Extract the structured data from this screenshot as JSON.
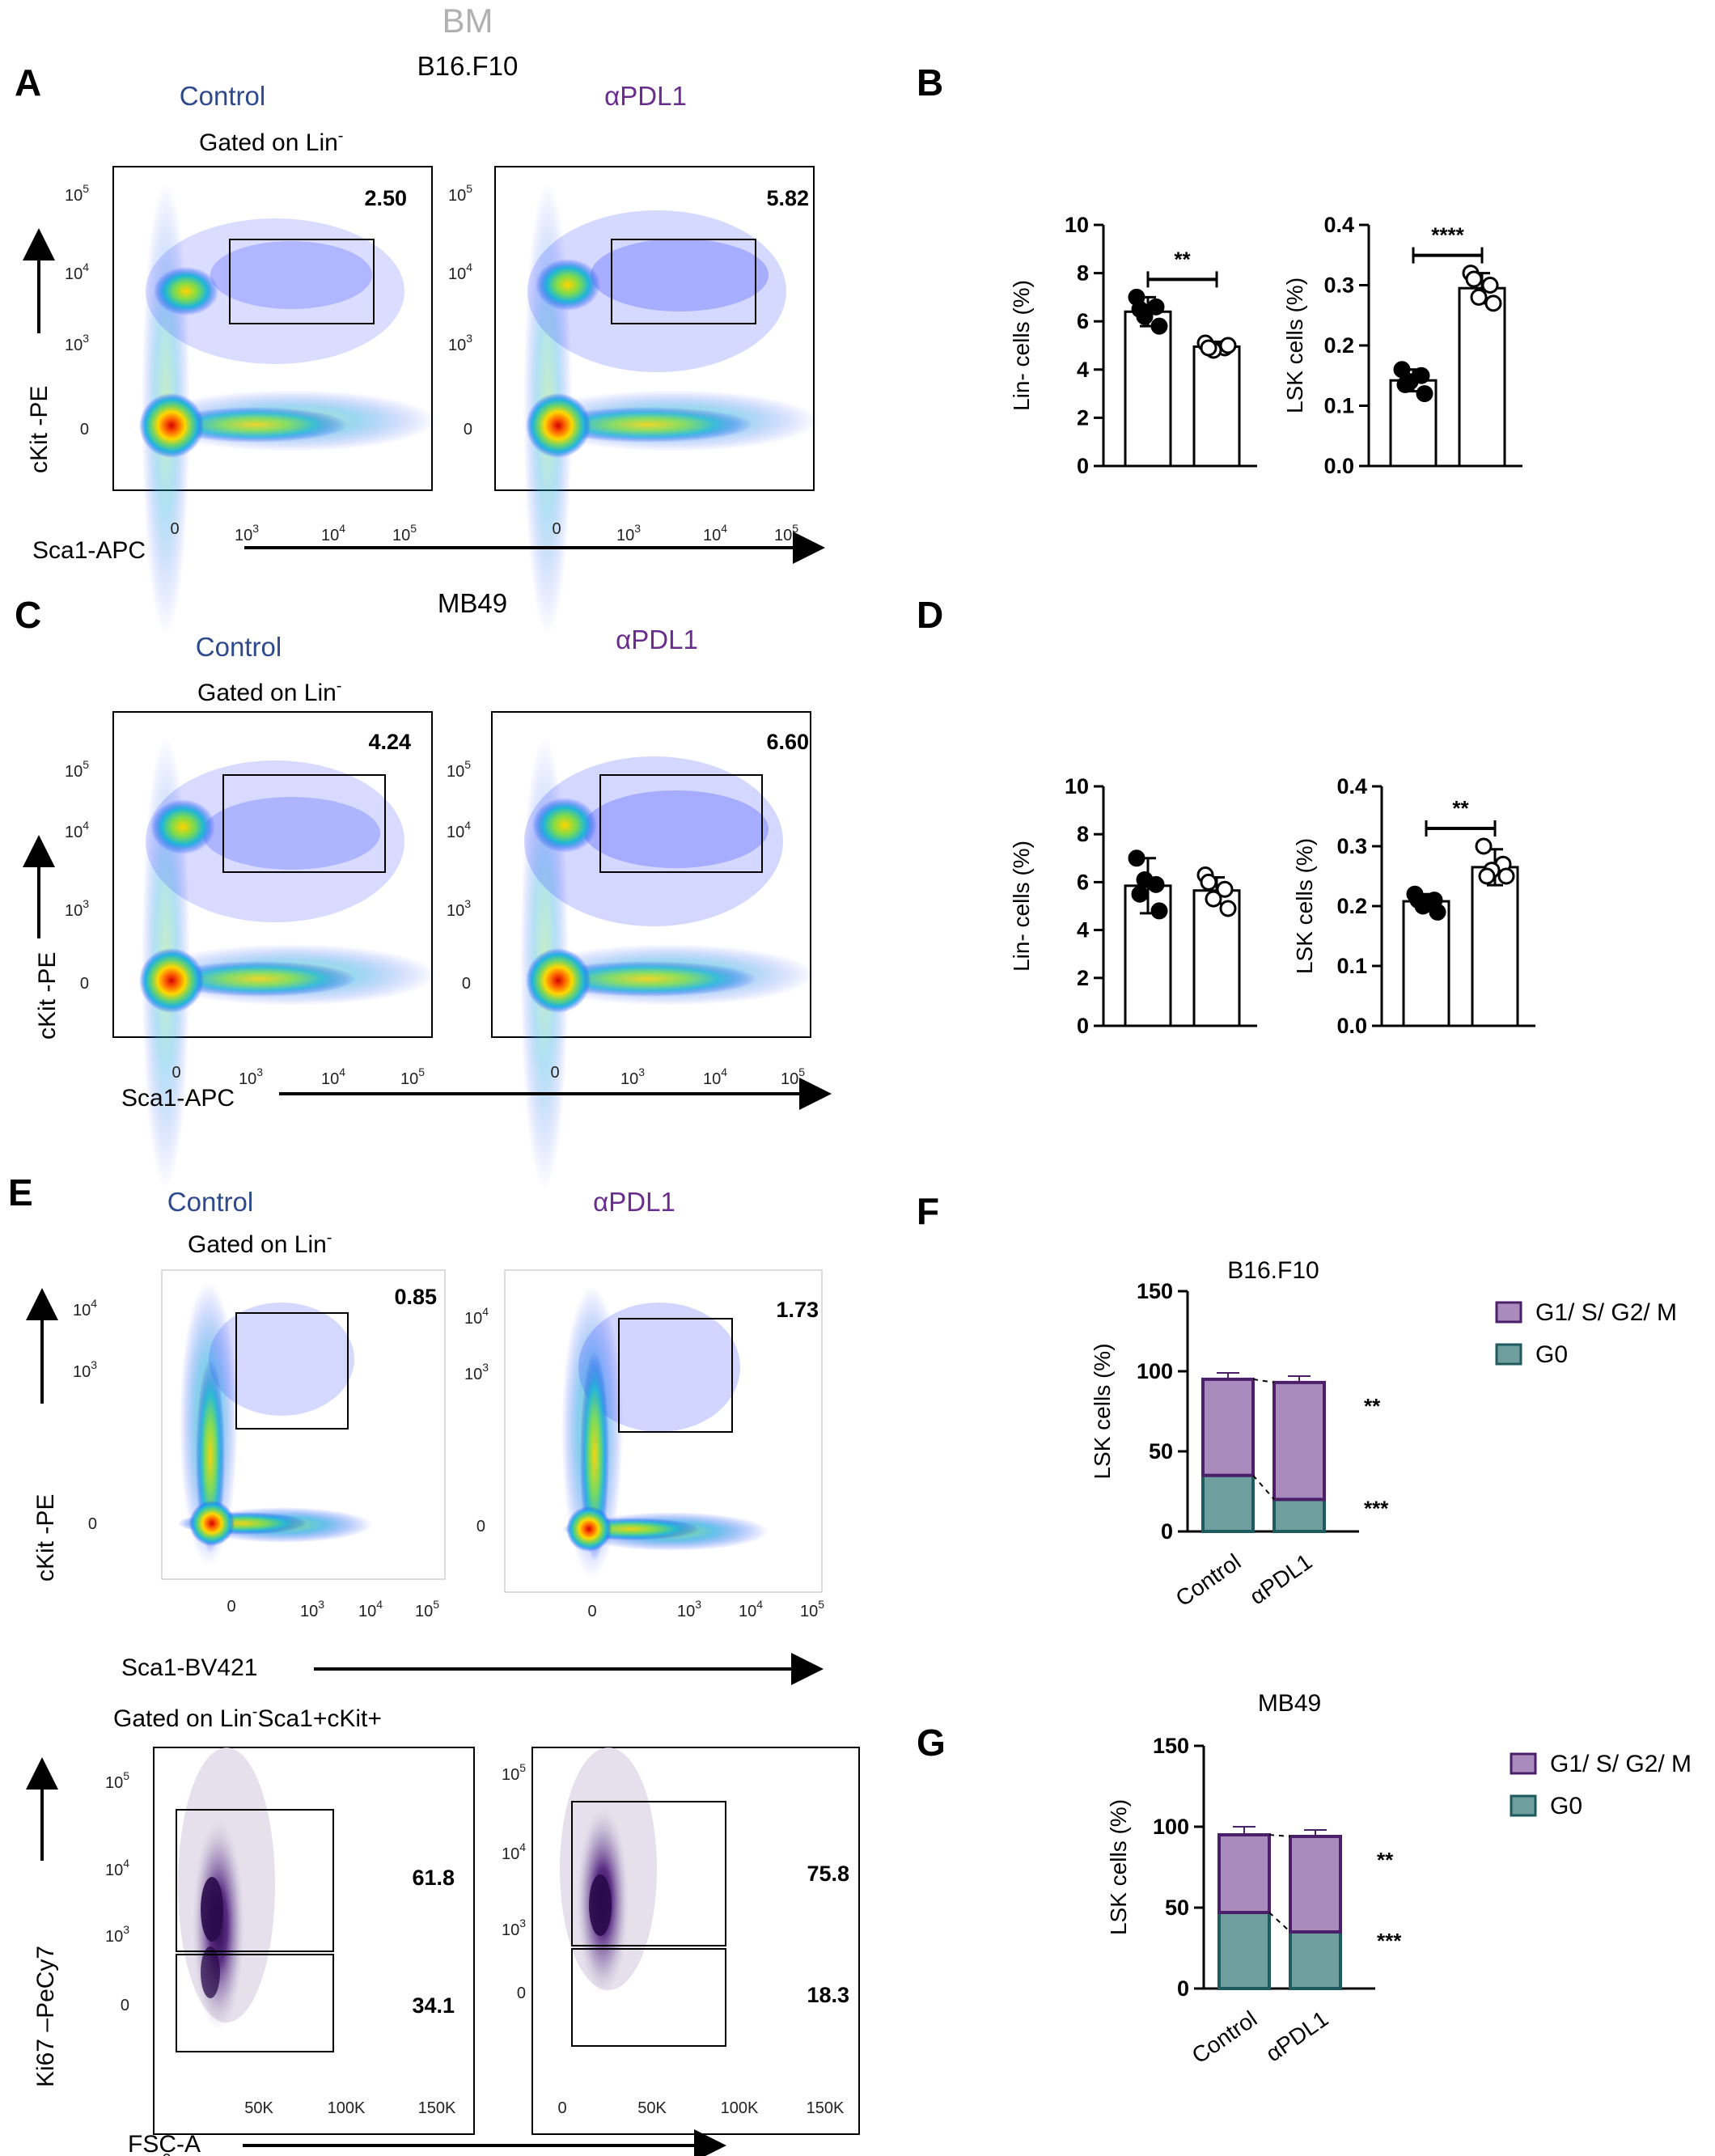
{
  "figure": {
    "tissue_label": "BM",
    "panels": {
      "A": {
        "letter": "A",
        "tumor": "B16.F10",
        "gate_text": "Gated on Lin",
        "gate_sup": "-",
        "x_axis": "Sca1-APC",
        "y_axis": "cKit -PE",
        "conditions": [
          {
            "name": "Control",
            "gate_pct": "2.50"
          },
          {
            "name": "αPDL1",
            "gate_pct": "5.82"
          }
        ],
        "y_ticks": [
          {
            "base": "10",
            "exp": "5"
          },
          {
            "base": "10",
            "exp": "4"
          },
          {
            "base": "10",
            "exp": "3"
          },
          {
            "base": "0",
            "exp": ""
          }
        ],
        "x_ticks": [
          {
            "base": "0",
            "exp": ""
          },
          {
            "base": "10",
            "exp": "3"
          },
          {
            "base": "10",
            "exp": "4"
          },
          {
            "base": "10",
            "exp": "5"
          }
        ]
      },
      "B": {
        "letter": "B"
      },
      "C": {
        "letter": "C",
        "tumor": "MB49",
        "gate_text": "Gated on Lin",
        "gate_sup": "-",
        "x_axis": "Sca1-APC",
        "y_axis": "cKit -PE",
        "conditions": [
          {
            "name": "Control",
            "gate_pct": "4.24"
          },
          {
            "name": "αPDL1",
            "gate_pct": "6.60"
          }
        ]
      },
      "D": {
        "letter": "D"
      },
      "E": {
        "letter": "E",
        "gate_text": "Gated on Lin",
        "gate_sup": "-",
        "x_axis": "Sca1-BV421",
        "y_axis": "cKit -PE",
        "conditions": [
          {
            "name": "Control",
            "gate_pct": "0.85"
          },
          {
            "name": "αPDL1",
            "gate_pct": "1.73"
          }
        ],
        "y_ticks": [
          {
            "base": "10",
            "exp": "4"
          },
          {
            "base": "10",
            "exp": "3"
          },
          {
            "base": "0",
            "exp": ""
          }
        ],
        "ki67": {
          "gate_text_a": "Gated on Lin",
          "gate_sup": "-",
          "gate_text_b": "Sca1+cKit+",
          "x_axis": "FSC-A",
          "y_axis": "Ki67 –PeCy7",
          "x_ticks": [
            "0",
            "50K",
            "100K",
            "150K"
          ],
          "control": {
            "upper": "61.8",
            "lower": "34.1"
          },
          "apdl1": {
            "upper": "75.8",
            "lower": "18.3"
          }
        }
      },
      "F": {
        "letter": "F"
      },
      "G": {
        "letter": "G"
      }
    }
  },
  "chart_data": [
    {
      "id": "B-lin",
      "type": "bar",
      "panel": "B",
      "ylabel": "Lin-  cells (%)",
      "ylim": [
        0,
        10
      ],
      "yticks": [
        0,
        2,
        4,
        6,
        8,
        10
      ],
      "categories": [
        "Control",
        "αPDL1"
      ],
      "values": [
        6.4,
        4.95
      ],
      "errors": [
        0.6,
        0.2
      ],
      "points": [
        [
          7.0,
          6.6,
          6.2,
          5.8,
          6.5
        ],
        [
          5.1,
          4.9,
          4.8,
          5.0,
          4.9
        ]
      ],
      "significance": "**"
    },
    {
      "id": "B-lsk",
      "type": "bar",
      "panel": "B",
      "ylabel": "LSK cells (%)",
      "ylim": [
        0,
        0.4
      ],
      "yticks": [
        0.0,
        0.1,
        0.2,
        0.3,
        0.4
      ],
      "categories": [
        "Control",
        "αPDL1"
      ],
      "values": [
        0.142,
        0.295
      ],
      "errors": [
        0.018,
        0.025
      ],
      "points": [
        [
          0.16,
          0.15,
          0.14,
          0.12,
          0.135
        ],
        [
          0.32,
          0.3,
          0.28,
          0.27,
          0.31
        ]
      ],
      "significance": "****"
    },
    {
      "id": "D-lin",
      "type": "bar",
      "panel": "D",
      "ylabel": "Lin-  cells (%)",
      "ylim": [
        0,
        10
      ],
      "yticks": [
        0,
        2,
        4,
        6,
        8,
        10
      ],
      "categories": [
        "Control",
        "αPDL1"
      ],
      "values": [
        5.85,
        5.65
      ],
      "errors": [
        1.15,
        0.55
      ],
      "points": [
        [
          7.0,
          5.9,
          6.1,
          4.8,
          5.5
        ],
        [
          6.3,
          5.7,
          5.3,
          4.9,
          6.0
        ]
      ],
      "significance": ""
    },
    {
      "id": "D-lsk",
      "type": "bar",
      "panel": "D",
      "ylabel": "LSK cells (%)",
      "ylim": [
        0,
        0.4
      ],
      "yticks": [
        0.0,
        0.1,
        0.2,
        0.3,
        0.4
      ],
      "categories": [
        "Control",
        "αPDL1"
      ],
      "values": [
        0.208,
        0.265
      ],
      "errors": [
        0.012,
        0.03
      ],
      "points": [
        [
          0.22,
          0.21,
          0.2,
          0.19,
          0.21
        ],
        [
          0.3,
          0.27,
          0.26,
          0.25,
          0.25
        ]
      ],
      "significance": "**"
    },
    {
      "id": "F",
      "type": "bar",
      "stacked": true,
      "panel": "F",
      "title": "B16.F10",
      "ylabel": "LSK cells (%)",
      "ylim": [
        0,
        150
      ],
      "yticks": [
        0,
        50,
        100,
        150
      ],
      "categories": [
        "Control",
        "αPDL1"
      ],
      "series": [
        {
          "name": "G0",
          "values": [
            35,
            20
          ],
          "errors": [
            4,
            4
          ],
          "color": "#6E9E9E",
          "edge": "#1F5A5E"
        },
        {
          "name": "G1/ S/ G2/ M",
          "values": [
            60,
            73
          ],
          "errors": [
            4,
            4
          ],
          "color": "#A98BBE",
          "edge": "#4B1F6A"
        }
      ],
      "legend": [
        "G1/ S/ G2/ M",
        "G0"
      ],
      "significance": {
        "top": "**",
        "bottom": "***"
      }
    },
    {
      "id": "G",
      "type": "bar",
      "stacked": true,
      "panel": "G",
      "title": "MB49",
      "ylabel": "LSK cells (%)",
      "ylim": [
        0,
        150
      ],
      "yticks": [
        0,
        50,
        100,
        150
      ],
      "categories": [
        "Control",
        "αPDL1"
      ],
      "series": [
        {
          "name": "G0",
          "values": [
            47,
            35
          ],
          "errors": [
            4,
            3
          ],
          "color": "#6E9E9E",
          "edge": "#1F5A5E"
        },
        {
          "name": "G1/ S/ G2/ M",
          "values": [
            48,
            59
          ],
          "errors": [
            5,
            4
          ],
          "color": "#A98BBE",
          "edge": "#4B1F6A"
        }
      ],
      "legend": [
        "G1/ S/ G2/ M",
        "G0"
      ],
      "significance": {
        "top": "**",
        "bottom": "***"
      }
    }
  ]
}
